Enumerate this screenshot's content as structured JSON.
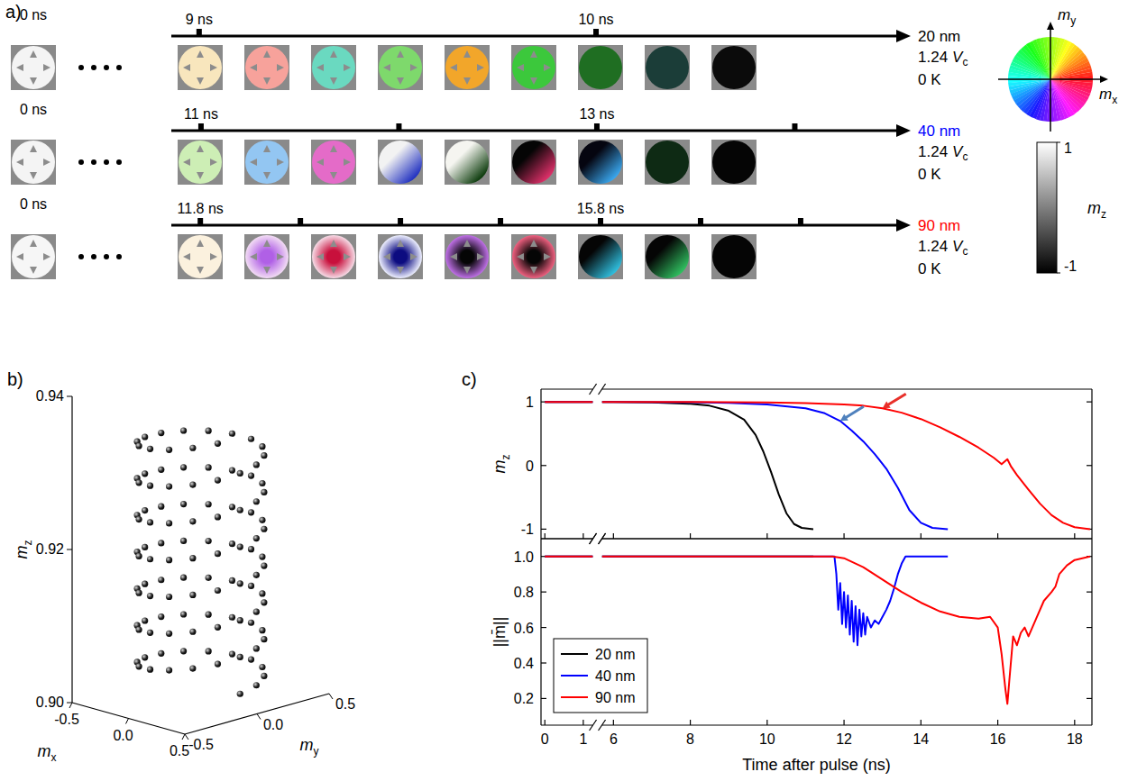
{
  "panel_labels": [
    "a)",
    "b)",
    "c)"
  ],
  "snapshots": {
    "rows": [
      {
        "start_label": "0 ns",
        "size_label": "20 nm",
        "size_color": "#000000",
        "voltage": "1.24",
        "voltage_unit": "V",
        "voltage_sub": "c",
        "temperature": "0 K",
        "xlim": [
          8.93,
          10.77
        ],
        "xticks": [
          {
            "value": 9,
            "label": "9 ns"
          },
          {
            "value": 10,
            "label": "10 ns"
          }
        ],
        "initial": {
          "fill": "#f4f4f4"
        },
        "frames": [
          {
            "fill": "#f8e6bd"
          },
          {
            "fill": "#f7a29b"
          },
          {
            "fill": "#6ad9c0"
          },
          {
            "fill": "#7ed96c"
          },
          {
            "fill": "#f2a62a"
          },
          {
            "fill": "#3cc83c"
          },
          {
            "fill": "#1f6e22"
          },
          {
            "fill": "#1b3d38"
          },
          {
            "fill": "#0b0b0b"
          }
        ]
      },
      {
        "start_label": "0 ns",
        "size_label": "40 nm",
        "size_color": "#0000ff",
        "voltage": "1.24",
        "voltage_unit": "V",
        "voltage_sub": "c",
        "temperature": "0 K",
        "xlim": [
          10.85,
          14.54
        ],
        "xticks": [
          {
            "value": 11,
            "label": "11 ns"
          },
          {
            "value": 12,
            "label": null
          },
          {
            "value": 13,
            "label": "13 ns"
          },
          {
            "value": 14,
            "label": null
          }
        ],
        "initial": {
          "fill": "#f4f4f4"
        },
        "frames": [
          {
            "fill": "#cdeeb5"
          },
          {
            "fill": "#93c6f2"
          },
          {
            "fill": "#e46bc8"
          },
          {
            "fill": "#f2f2f2",
            "gradient": "#2030c0"
          },
          {
            "fill": "#f5f5f0",
            "gradient": "#0a3a0a"
          },
          {
            "fill": "#050505",
            "gradient": "#e0306a"
          },
          {
            "fill": "#050510",
            "gradient": "#3aa8f0"
          },
          {
            "fill": "#0e2a14"
          },
          {
            "fill": "#050505"
          }
        ]
      },
      {
        "start_label": "0 ns",
        "size_label": "90 nm",
        "size_color": "#ff0000",
        "voltage": "1.24",
        "voltage_unit": "V",
        "voltage_sub": "c",
        "temperature": "0 K",
        "xlim": [
          11.51,
          18.81
        ],
        "xticks": [
          {
            "value": 11.8,
            "label": "11.8 ns"
          },
          {
            "value": 12.8,
            "label": null
          },
          {
            "value": 13.8,
            "label": null
          },
          {
            "value": 14.8,
            "label": null
          },
          {
            "value": 15.8,
            "label": "15.8 ns"
          },
          {
            "value": 16.8,
            "label": null
          },
          {
            "value": 17.8,
            "label": null
          }
        ],
        "initial": {
          "fill": "#f6f6f6"
        },
        "frames": [
          {
            "fill": "#fbf1de"
          },
          {
            "fill": "#f2dcf4",
            "core": "#b060e6"
          },
          {
            "fill": "#f6dbe6",
            "core": "#c8103c"
          },
          {
            "fill": "#eef0ff",
            "core": "#0c0c80"
          },
          {
            "fill": "#c070e8",
            "core": "#050505"
          },
          {
            "fill": "#f06080",
            "core": "#050505"
          },
          {
            "fill": "#050505",
            "gradient": "#30c0e0"
          },
          {
            "fill": "#050505",
            "gradient": "#30c060"
          },
          {
            "fill": "#050505"
          }
        ]
      }
    ],
    "color_wheel": {
      "x_label": {
        "base": "m",
        "sub": "x"
      },
      "y_label": {
        "base": "m",
        "sub": "y"
      }
    },
    "color_bar": {
      "label": {
        "base": "m",
        "sub": "z"
      },
      "range": [
        -1,
        1
      ],
      "ticks": [
        1,
        -1
      ]
    }
  },
  "chart_data": [
    {
      "type": "scatter3d",
      "color": "#222222",
      "marker": "circle",
      "x_label": {
        "base": "m",
        "sub": "x"
      },
      "y_label": {
        "base": "m",
        "sub": "y"
      },
      "z_label": {
        "base": "m",
        "sub": "z"
      },
      "xlim": [
        -0.5,
        0.5
      ],
      "ylim": [
        -0.5,
        0.5
      ],
      "zlim": [
        0.9,
        0.94
      ],
      "xticks": [
        -0.5,
        {
          "value": 0,
          "label": "0.0"
        },
        0.5
      ],
      "yticks": [
        -0.5,
        {
          "value": 0,
          "label": "0.0"
        },
        0.5
      ],
      "zticks": [
        {
          "value": 0.9,
          "label": "0.90"
        },
        0.92,
        0.94
      ],
      "x": [
        0.35,
        0.323,
        0.247,
        0.134,
        0,
        -0.134,
        -0.247,
        -0.323,
        -0.35,
        -0.323,
        -0.247,
        -0.134,
        0,
        0.134,
        0.247,
        0.323,
        0.35,
        0.323,
        0.247,
        0.134,
        0,
        -0.134,
        -0.247,
        -0.323,
        -0.35,
        -0.323,
        -0.247,
        -0.134,
        0,
        0.134,
        0.247,
        0.323,
        0.35,
        0.323,
        0.247,
        0.134,
        0,
        -0.134,
        -0.247,
        -0.323,
        -0.35,
        -0.323,
        -0.247,
        -0.134,
        0,
        0.134,
        0.247,
        0.323,
        0.35,
        0.323,
        0.247,
        0.134,
        0,
        -0.134,
        -0.247,
        -0.323,
        -0.35,
        -0.323,
        -0.247,
        -0.134,
        0,
        0.134,
        0.247,
        0.323,
        0.35,
        0.323,
        0.247,
        0.134,
        0,
        -0.134,
        -0.247,
        -0.323,
        -0.35,
        -0.323,
        -0.247,
        -0.134,
        0,
        0.134,
        0.247,
        0.323,
        0.35,
        0.323,
        0.247,
        0.134,
        0,
        -0.134,
        -0.247,
        -0.323,
        -0.35,
        -0.323,
        -0.247,
        -0.134,
        0,
        0.134,
        0.247,
        0.323,
        0.35,
        0.323,
        0.247,
        0.134,
        0,
        -0.134,
        -0.247,
        -0.323,
        -0.35,
        -0.323,
        -0.247,
        -0.134,
        0,
        0.134,
        0.247,
        0.323
      ],
      "y": [
        0,
        0.134,
        0.247,
        0.323,
        0.35,
        0.323,
        0.247,
        0.134,
        0,
        -0.134,
        -0.247,
        -0.323,
        -0.35,
        -0.323,
        -0.247,
        -0.134,
        0,
        0.134,
        0.247,
        0.323,
        0.35,
        0.323,
        0.247,
        0.134,
        0,
        -0.134,
        -0.247,
        -0.323,
        -0.35,
        -0.323,
        -0.247,
        -0.134,
        0,
        0.134,
        0.247,
        0.323,
        0.35,
        0.323,
        0.247,
        0.134,
        0,
        -0.134,
        -0.247,
        -0.323,
        -0.35,
        -0.323,
        -0.247,
        -0.134,
        0,
        0.134,
        0.247,
        0.323,
        0.35,
        0.323,
        0.247,
        0.134,
        0,
        -0.134,
        -0.247,
        -0.323,
        -0.35,
        -0.323,
        -0.247,
        -0.134,
        0,
        0.134,
        0.247,
        0.323,
        0.35,
        0.323,
        0.247,
        0.134,
        0,
        -0.134,
        -0.247,
        -0.323,
        -0.35,
        -0.323,
        -0.247,
        -0.134,
        0,
        0.134,
        0.247,
        0.323,
        0.35,
        0.323,
        0.247,
        0.134,
        0,
        -0.134,
        -0.247,
        -0.323,
        -0.35,
        -0.323,
        -0.247,
        -0.134,
        0,
        0.134,
        0.247,
        0.323,
        0.35,
        0.323,
        0.247,
        0.134,
        0,
        -0.134,
        -0.247,
        -0.323,
        -0.35,
        -0.323,
        -0.247,
        -0.134
      ],
      "z": [
        0.902,
        0.9023,
        0.9026,
        0.9029,
        0.9032,
        0.9035,
        0.9038,
        0.9041,
        0.9044,
        0.9047,
        0.905,
        0.9053,
        0.9056,
        0.9059,
        0.9062,
        0.9065,
        0.9068,
        0.9071,
        0.9074,
        0.9077,
        0.908,
        0.9083,
        0.9086,
        0.9089,
        0.9092,
        0.9095,
        0.9098,
        0.9101,
        0.9104,
        0.9107,
        0.911,
        0.9113,
        0.9116,
        0.9119,
        0.9122,
        0.9125,
        0.9128,
        0.9131,
        0.9134,
        0.9137,
        0.914,
        0.9143,
        0.9146,
        0.9149,
        0.9152,
        0.9155,
        0.9158,
        0.9161,
        0.9164,
        0.9167,
        0.917,
        0.9173,
        0.9176,
        0.9179,
        0.9182,
        0.9185,
        0.9188,
        0.9191,
        0.9194,
        0.9197,
        0.92,
        0.9203,
        0.9206,
        0.9209,
        0.9212,
        0.9215,
        0.9218,
        0.9221,
        0.9224,
        0.9227,
        0.923,
        0.9233,
        0.9236,
        0.9239,
        0.9242,
        0.9245,
        0.9248,
        0.9251,
        0.9254,
        0.9257,
        0.926,
        0.9263,
        0.9266,
        0.9269,
        0.9272,
        0.9275,
        0.9278,
        0.9281,
        0.9284,
        0.9287,
        0.929,
        0.9293,
        0.9296,
        0.9299,
        0.9302,
        0.9305,
        0.9308,
        0.9311,
        0.9314,
        0.9317,
        0.932,
        0.9323,
        0.9326,
        0.9329,
        0.9332,
        0.9335,
        0.9338,
        0.9341,
        0.9344,
        0.9347,
        0.935,
        0.9353
      ]
    },
    {
      "type": "line",
      "y_label": {
        "base": "m",
        "sub": "z"
      },
      "xlim": [
        -0.1,
        18.45
      ],
      "x_break": [
        1.25,
        5.7
      ],
      "xticks": [
        0,
        1,
        6,
        8,
        10,
        12,
        14,
        16,
        18
      ],
      "ylim": [
        -1.15,
        1.2
      ],
      "yticks": [
        -1,
        0,
        1
      ],
      "tick_labels": "y",
      "series": [
        {
          "color": "#000000",
          "x": [
            0,
            1.25,
            5.7,
            6,
            7,
            8,
            8.5,
            9,
            9.4,
            9.7,
            9.9,
            10.1,
            10.3,
            10.5,
            10.7,
            10.9,
            11.2
          ],
          "values": [
            1,
            1,
            1,
            1,
            0.99,
            0.97,
            0.94,
            0.86,
            0.72,
            0.48,
            0.22,
            -0.1,
            -0.45,
            -0.75,
            -0.92,
            -0.98,
            -1
          ]
        },
        {
          "color": "#0000ff",
          "x": [
            0,
            1.25,
            5.7,
            6,
            8,
            9,
            10,
            11,
            11.5,
            11.9,
            12.2,
            12.5,
            12.8,
            13.1,
            13.4,
            13.7,
            14,
            14.3,
            14.7
          ],
          "values": [
            1,
            1,
            1,
            1,
            0.995,
            0.985,
            0.96,
            0.9,
            0.82,
            0.7,
            0.55,
            0.38,
            0.18,
            -0.05,
            -0.35,
            -0.7,
            -0.9,
            -0.98,
            -1
          ]
        },
        {
          "color": "#ff0000",
          "x": [
            0,
            1.25,
            5.7,
            6,
            8,
            10,
            11,
            12,
            12.5,
            13,
            13.5,
            14,
            14.5,
            15,
            15.5,
            15.9,
            16.1,
            16.25,
            16.35,
            16.5,
            16.8,
            17.1,
            17.4,
            17.7,
            18,
            18.4
          ],
          "values": [
            1,
            1,
            1,
            1,
            0.998,
            0.99,
            0.98,
            0.96,
            0.94,
            0.9,
            0.83,
            0.73,
            0.6,
            0.45,
            0.28,
            0.12,
            0.02,
            0.1,
            -0.02,
            -0.15,
            -0.38,
            -0.6,
            -0.78,
            -0.9,
            -0.97,
            -1
          ]
        }
      ],
      "arrows": [
        {
          "x": 11.9,
          "y": 0.7,
          "color": "#4f81bd"
        },
        {
          "x": 13.0,
          "y": 0.9,
          "color": "#e8302a"
        }
      ]
    },
    {
      "type": "line",
      "x_label": "Time after pulse (ns)",
      "y_label": "||m̄||",
      "xlim": [
        -0.1,
        18.45
      ],
      "x_break": [
        1.25,
        5.7
      ],
      "xticks": [
        0,
        1,
        6,
        8,
        10,
        12,
        14,
        16,
        18
      ],
      "ylim": [
        0.05,
        1.1
      ],
      "yticks": [
        0.2,
        0.4,
        0.6,
        0.8,
        {
          "value": 1,
          "label": "1.0"
        }
      ],
      "legend": "lower left",
      "series": [
        {
          "name": "20 nm",
          "color": "#000000",
          "x": [
            0,
            1.25,
            5.7,
            11.2
          ],
          "values": [
            1,
            1,
            1,
            1
          ]
        },
        {
          "name": "40 nm",
          "color": "#0000ff",
          "x": [
            0,
            1.25,
            5.7,
            11.75,
            11.8,
            11.85,
            11.9,
            11.95,
            12,
            12.05,
            12.1,
            12.15,
            12.2,
            12.25,
            12.3,
            12.35,
            12.4,
            12.45,
            12.5,
            12.55,
            12.6,
            12.7,
            12.8,
            12.9,
            13,
            13.1,
            13.2,
            13.3,
            13.4,
            13.5,
            13.6,
            14.7
          ],
          "values": [
            1,
            1,
            1,
            1,
            0.9,
            0.7,
            0.85,
            0.62,
            0.8,
            0.6,
            0.78,
            0.56,
            0.75,
            0.52,
            0.72,
            0.5,
            0.7,
            0.55,
            0.68,
            0.56,
            0.66,
            0.6,
            0.64,
            0.62,
            0.66,
            0.7,
            0.75,
            0.82,
            0.9,
            0.96,
            1,
            1
          ]
        },
        {
          "name": "90 nm",
          "color": "#ff0000",
          "x": [
            0,
            1.25,
            5.7,
            11.7,
            12,
            12.5,
            13,
            13.5,
            14,
            14.5,
            15,
            15.5,
            15.8,
            16,
            16.1,
            16.2,
            16.25,
            16.3,
            16.4,
            16.5,
            16.6,
            16.7,
            16.8,
            17,
            17.2,
            17.4,
            17.5,
            17.6,
            17.8,
            18,
            18.4
          ],
          "values": [
            1,
            1,
            1,
            1,
            0.99,
            0.94,
            0.87,
            0.8,
            0.74,
            0.69,
            0.66,
            0.65,
            0.66,
            0.6,
            0.45,
            0.25,
            0.17,
            0.3,
            0.55,
            0.5,
            0.57,
            0.6,
            0.55,
            0.65,
            0.75,
            0.8,
            0.83,
            0.9,
            0.95,
            0.98,
            1
          ]
        }
      ]
    }
  ]
}
